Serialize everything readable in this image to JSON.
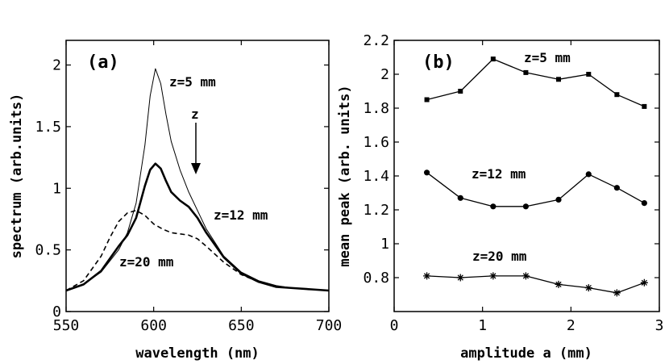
{
  "chart_data": [
    {
      "type": "line",
      "panel_label": "(a)",
      "xlabel": "wavelength (nm)",
      "ylabel": "spectrum (arb.units)",
      "xlim": [
        550,
        700
      ],
      "ylim": [
        0,
        2.2
      ],
      "xticks": [
        550,
        600,
        650,
        700
      ],
      "xtick_labels": [
        "550",
        "600",
        "650",
        "700"
      ],
      "yticks": [
        0,
        0.5,
        1,
        1.5,
        2
      ],
      "ytick_labels": [
        "0",
        "0.5",
        "1",
        "1.5",
        "2"
      ],
      "series": [
        {
          "name": "z=5 mm",
          "style": "thin",
          "x": [
            550,
            560,
            570,
            580,
            585,
            590,
            595,
            598,
            601,
            604,
            607,
            610,
            615,
            620,
            625,
            630,
            640,
            650,
            660,
            670,
            680,
            690,
            700
          ],
          "y": [
            0.17,
            0.22,
            0.32,
            0.5,
            0.64,
            0.88,
            1.35,
            1.75,
            1.97,
            1.85,
            1.6,
            1.38,
            1.15,
            0.97,
            0.82,
            0.67,
            0.45,
            0.32,
            0.25,
            0.21,
            0.19,
            0.18,
            0.17
          ]
        },
        {
          "name": "z=12 mm",
          "style": "thick",
          "x": [
            550,
            560,
            570,
            580,
            585,
            590,
            595,
            598,
            601,
            604,
            607,
            610,
            615,
            620,
            625,
            630,
            640,
            650,
            660,
            670,
            680,
            690,
            700
          ],
          "y": [
            0.17,
            0.22,
            0.33,
            0.53,
            0.62,
            0.76,
            1.02,
            1.15,
            1.2,
            1.16,
            1.06,
            0.97,
            0.9,
            0.85,
            0.76,
            0.64,
            0.44,
            0.31,
            0.24,
            0.2,
            0.19,
            0.18,
            0.17
          ]
        },
        {
          "name": "z=20 mm",
          "style": "dashed",
          "x": [
            550,
            560,
            570,
            575,
            580,
            585,
            590,
            595,
            600,
            605,
            610,
            615,
            620,
            625,
            630,
            640,
            650,
            660,
            670,
            680,
            690,
            700
          ],
          "y": [
            0.17,
            0.25,
            0.45,
            0.6,
            0.73,
            0.8,
            0.82,
            0.78,
            0.71,
            0.67,
            0.64,
            0.63,
            0.62,
            0.59,
            0.53,
            0.4,
            0.3,
            0.24,
            0.2,
            0.19,
            0.18,
            0.17
          ]
        }
      ],
      "annotations": {
        "z5": "z=5 mm",
        "z12": "z=12 mm",
        "z20": "z=20 mm",
        "arrow": "z"
      }
    },
    {
      "type": "line",
      "panel_label": "(b)",
      "xlabel": "amplitude a (mm)",
      "ylabel": "mean peak (arb. units)",
      "xlim": [
        0,
        3
      ],
      "ylim": [
        0.6,
        2.2
      ],
      "xticks": [
        0,
        1,
        2,
        3
      ],
      "xtick_labels": [
        "0",
        "1",
        "2",
        "3"
      ],
      "yticks": [
        0.8,
        1,
        1.2,
        1.4,
        1.6,
        1.8,
        2,
        2.2
      ],
      "ytick_labels": [
        "0.8",
        "1",
        "1.2",
        "1.4",
        "1.6",
        "1.8",
        "2",
        "2.2"
      ],
      "series": [
        {
          "name": "z=5 mm",
          "marker": "square",
          "x": [
            0.37,
            0.75,
            1.12,
            1.49,
            1.86,
            2.2,
            2.52,
            2.83
          ],
          "y": [
            1.85,
            1.9,
            2.09,
            2.01,
            1.97,
            2.0,
            1.88,
            1.81
          ]
        },
        {
          "name": "z=12 mm",
          "marker": "circle",
          "x": [
            0.37,
            0.75,
            1.12,
            1.49,
            1.86,
            2.2,
            2.52,
            2.83
          ],
          "y": [
            1.42,
            1.27,
            1.22,
            1.22,
            1.26,
            1.41,
            1.33,
            1.24
          ]
        },
        {
          "name": "z=20 mm",
          "marker": "star",
          "x": [
            0.37,
            0.75,
            1.12,
            1.49,
            1.86,
            2.2,
            2.52,
            2.83
          ],
          "y": [
            0.81,
            0.8,
            0.81,
            0.81,
            0.76,
            0.74,
            0.71,
            0.77
          ]
        }
      ],
      "annotations": {
        "z5": "z=5 mm",
        "z12": "z=12 mm",
        "z20": "z=20 mm"
      }
    }
  ]
}
